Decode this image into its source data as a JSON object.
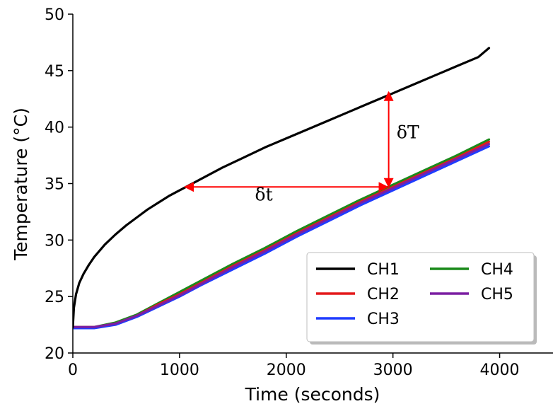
{
  "chart_data": {
    "type": "line",
    "xlabel": "Time (seconds)",
    "ylabel": "Temperature (°C)",
    "xlim": [
      0,
      4500
    ],
    "ylim": [
      20,
      50
    ],
    "xticks": [
      0,
      1000,
      2000,
      3000,
      4000
    ],
    "yticks": [
      20,
      25,
      30,
      35,
      40,
      45,
      50
    ],
    "xtick_labels": [
      "0",
      "1000",
      "2000",
      "3000",
      "4000"
    ],
    "ytick_labels": [
      "20",
      "25",
      "30",
      "35",
      "40",
      "45",
      "50"
    ],
    "grid": false,
    "legend_position": "lower-right",
    "legend_columns": 2,
    "series": [
      {
        "name": "CH1",
        "color": "#000000",
        "x": [
          0,
          10,
          30,
          60,
          100,
          150,
          200,
          300,
          400,
          500,
          600,
          700,
          800,
          900,
          1000,
          1100,
          1200,
          1400,
          1600,
          1800,
          2000,
          2200,
          2400,
          2600,
          2800,
          3000,
          3200,
          3400,
          3600,
          3800,
          3900
        ],
        "y": [
          22.3,
          24.0,
          25.2,
          26.2,
          27.0,
          27.8,
          28.5,
          29.6,
          30.5,
          31.3,
          32.0,
          32.7,
          33.3,
          33.9,
          34.4,
          34.9,
          35.4,
          36.4,
          37.3,
          38.2,
          39.0,
          39.8,
          40.6,
          41.4,
          42.2,
          43.0,
          43.8,
          44.6,
          45.4,
          46.2,
          47.0
        ]
      },
      {
        "name": "CH2",
        "color": "#e41a1c",
        "x": [
          0,
          200,
          400,
          600,
          800,
          1000,
          1200,
          1500,
          1800,
          2100,
          2400,
          2700,
          3000,
          3300,
          3600,
          3900
        ],
        "y": [
          22.3,
          22.3,
          22.6,
          23.3,
          24.3,
          25.2,
          26.2,
          27.7,
          29.1,
          30.6,
          32.0,
          33.4,
          34.7,
          36.0,
          37.3,
          38.7
        ]
      },
      {
        "name": "CH3",
        "color": "#1f3cff",
        "x": [
          0,
          200,
          400,
          600,
          800,
          1000,
          1200,
          1500,
          1800,
          2100,
          2400,
          2700,
          3000,
          3300,
          3600,
          3900
        ],
        "y": [
          22.2,
          22.2,
          22.5,
          23.2,
          24.1,
          25.0,
          26.0,
          27.4,
          28.8,
          30.3,
          31.7,
          33.1,
          34.4,
          35.7,
          37.0,
          38.3
        ]
      },
      {
        "name": "CH4",
        "color": "#1a8a1a",
        "x": [
          0,
          200,
          400,
          600,
          800,
          1000,
          1200,
          1500,
          1800,
          2100,
          2400,
          2700,
          3000,
          3300,
          3600,
          3900
        ],
        "y": [
          22.3,
          22.3,
          22.7,
          23.4,
          24.4,
          25.4,
          26.4,
          27.9,
          29.3,
          30.8,
          32.2,
          33.6,
          34.9,
          36.2,
          37.5,
          38.9
        ]
      },
      {
        "name": "CH5",
        "color": "#7b1fa2",
        "x": [
          0,
          200,
          400,
          600,
          800,
          1000,
          1200,
          1500,
          1800,
          2100,
          2400,
          2700,
          3000,
          3300,
          3600,
          3900
        ],
        "y": [
          22.3,
          22.3,
          22.6,
          23.3,
          24.2,
          25.1,
          26.1,
          27.6,
          29.0,
          30.5,
          31.9,
          33.3,
          34.6,
          35.9,
          37.2,
          38.5
        ]
      }
    ],
    "annotations": [
      {
        "label": "δt",
        "kind": "horizontal-arrow",
        "x_from": 1050,
        "x_to": 2950,
        "y": 34.7,
        "label_x": 1790,
        "label_y": 33.5,
        "color": "#ff0000"
      },
      {
        "label": "δT",
        "kind": "vertical-arrow",
        "x": 2960,
        "y_from": 34.7,
        "y_to": 43.1,
        "label_x": 3140,
        "label_y": 39.0,
        "color": "#ff0000"
      }
    ]
  }
}
